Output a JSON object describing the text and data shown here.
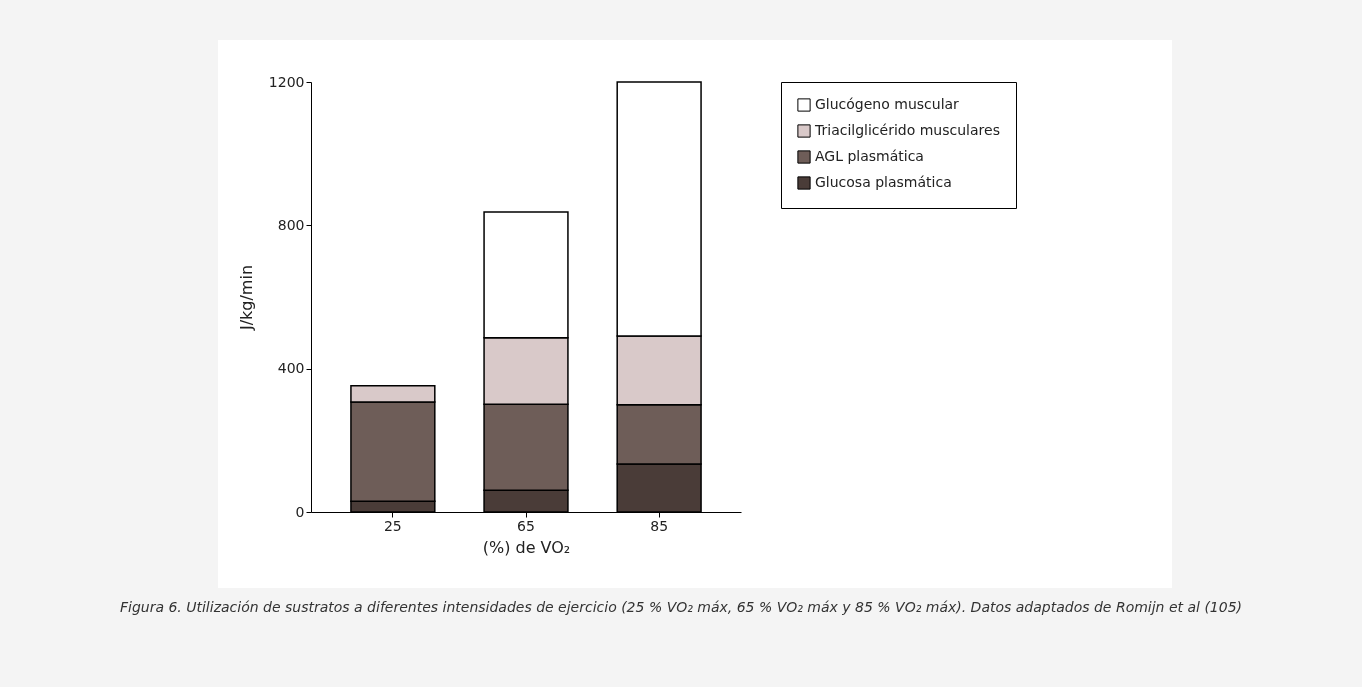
{
  "chart_data": {
    "type": "bar",
    "stacked": true,
    "categories": [
      "25",
      "65",
      "85"
    ],
    "xlabel": "(%) de VO₂",
    "ylabel": "J/kg/min",
    "ylim": [
      0,
      1200
    ],
    "yticks": [
      0,
      400,
      800,
      1200
    ],
    "grid": false,
    "legend": "right",
    "series": [
      {
        "name": "Glucosa plasmática",
        "color": "#4a3c38",
        "values": [
          30,
          61,
          134
        ]
      },
      {
        "name": "AGL plasmática",
        "color": "#6e5d58",
        "values": [
          277,
          240,
          165
        ]
      },
      {
        "name": "Triacilglicérido musculares",
        "color": "#d9c9c9",
        "values": [
          45,
          185,
          192
        ]
      },
      {
        "name": "Glucógeno muscular",
        "color": "#ffffff",
        "values": [
          null,
          351,
          709
        ]
      }
    ],
    "annotations": [
      "Figura 6. Utilización de sustratos a diferentes intensidades de ejercicio (25 % VO₂  máx, 65 % VO₂  máx y 85 % VO₂  máx). Datos adaptados de Romijn et al (105)"
    ]
  }
}
